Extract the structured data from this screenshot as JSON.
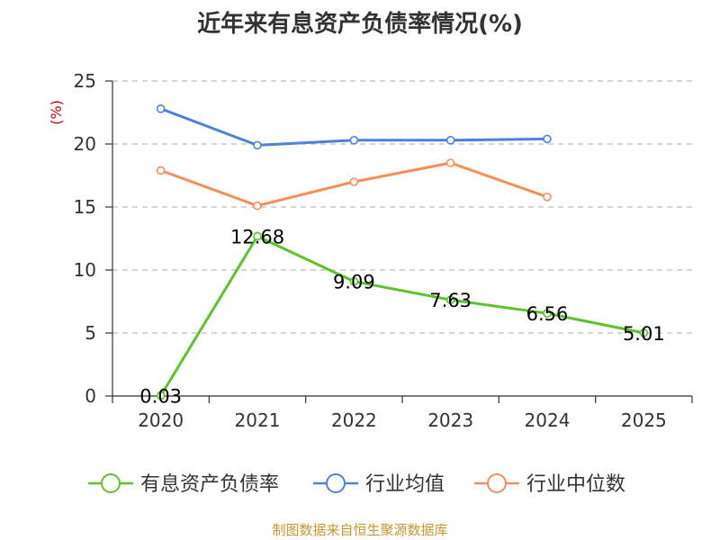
{
  "title": "近年来有息资产负债率情况(%)",
  "footer": "制图数据来自恒生聚源数据库",
  "chart_data": {
    "type": "line",
    "title": "近年来有息资产负债率情况(%)",
    "ylabel": "(%)",
    "xlabel": "",
    "categories": [
      "2020",
      "2021",
      "2022",
      "2023",
      "2024",
      "2025"
    ],
    "ylim": [
      0,
      25
    ],
    "yticks": [
      0,
      5,
      10,
      15,
      20,
      25
    ],
    "grid": true,
    "legend_position": "bottom",
    "series": [
      {
        "name": "有息资产负债率",
        "color": "#5ec22b",
        "values": [
          0.03,
          12.68,
          9.09,
          7.63,
          6.56,
          5.01
        ],
        "labels": [
          "0.03",
          "12.68",
          "9.09",
          "7.63",
          "6.56",
          "5.01"
        ]
      },
      {
        "name": "行业均值",
        "color": "#4f81d9",
        "values": [
          22.8,
          19.9,
          20.3,
          20.3,
          20.4,
          null
        ]
      },
      {
        "name": "行业中位数",
        "color": "#f58f58",
        "values": [
          17.9,
          15.1,
          17.0,
          18.5,
          15.8,
          null
        ]
      }
    ]
  }
}
